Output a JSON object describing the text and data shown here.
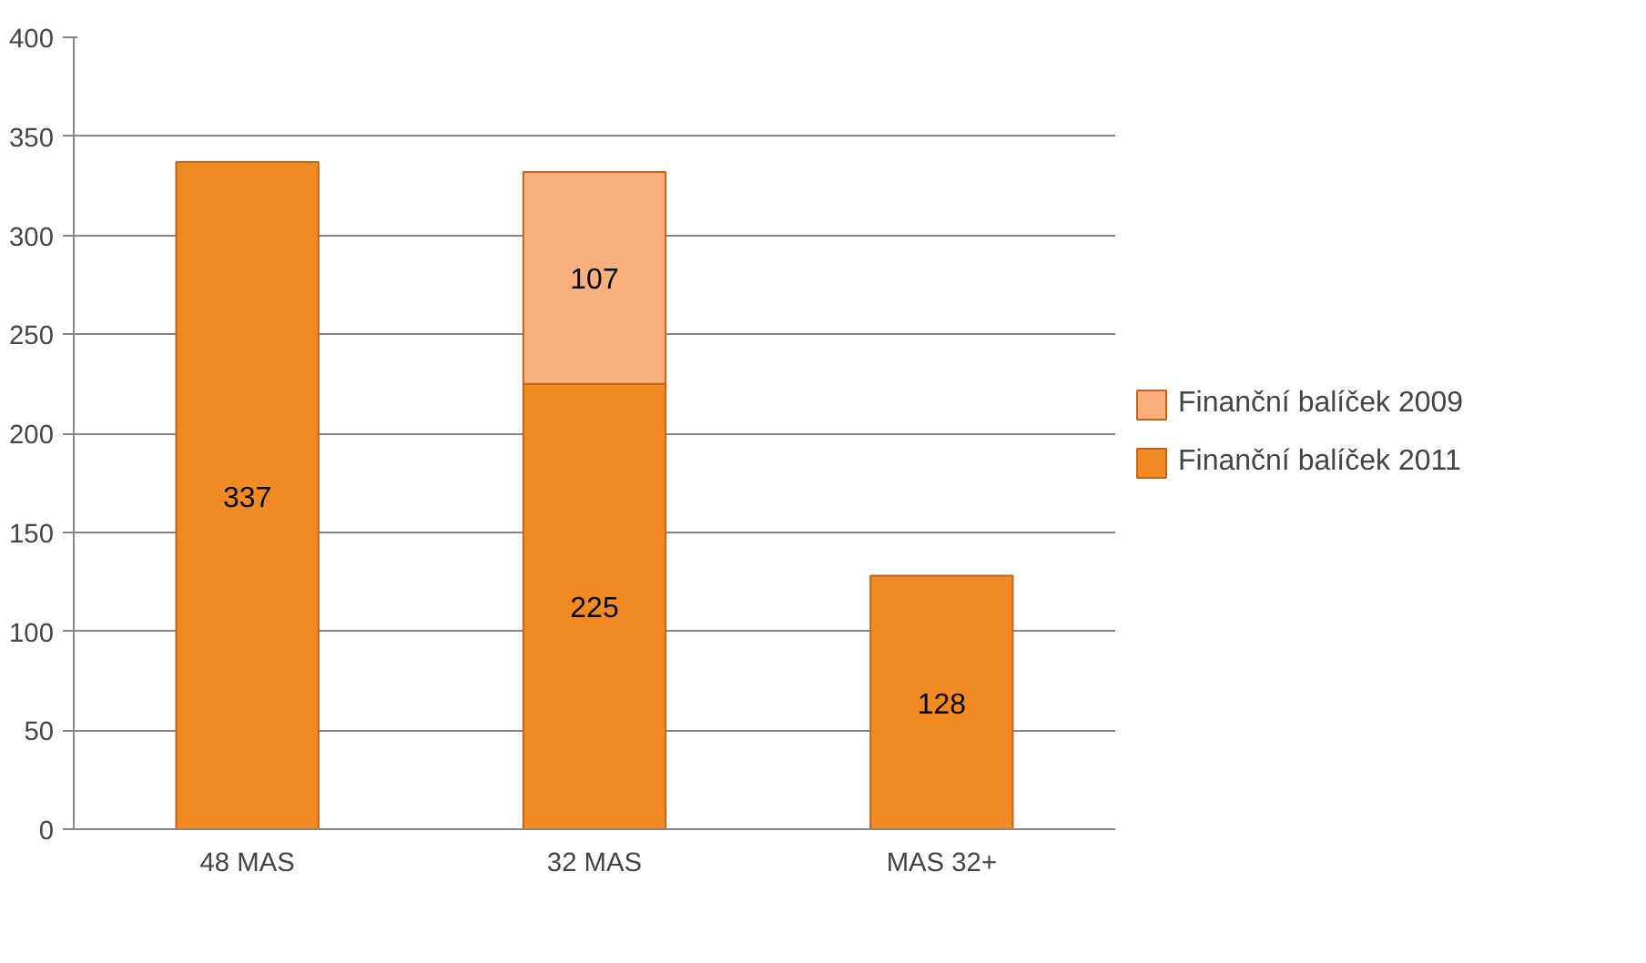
{
  "chart_data": {
    "type": "bar",
    "stacked": true,
    "categories": [
      "48 MAS",
      "32 MAS",
      "MAS 32+"
    ],
    "series": [
      {
        "name": "Finanční balíček 2011",
        "color": "#f28a24",
        "values": [
          337,
          225,
          128
        ]
      },
      {
        "name": "Finanční balíček 2009",
        "color": "#f9b07c",
        "values": [
          null,
          107,
          null
        ]
      }
    ],
    "ylim": [
      0,
      400
    ],
    "yticks": [
      0,
      50,
      100,
      150,
      200,
      250,
      300,
      350,
      400
    ],
    "grid": "y",
    "legend": "right",
    "data_labels": true
  }
}
